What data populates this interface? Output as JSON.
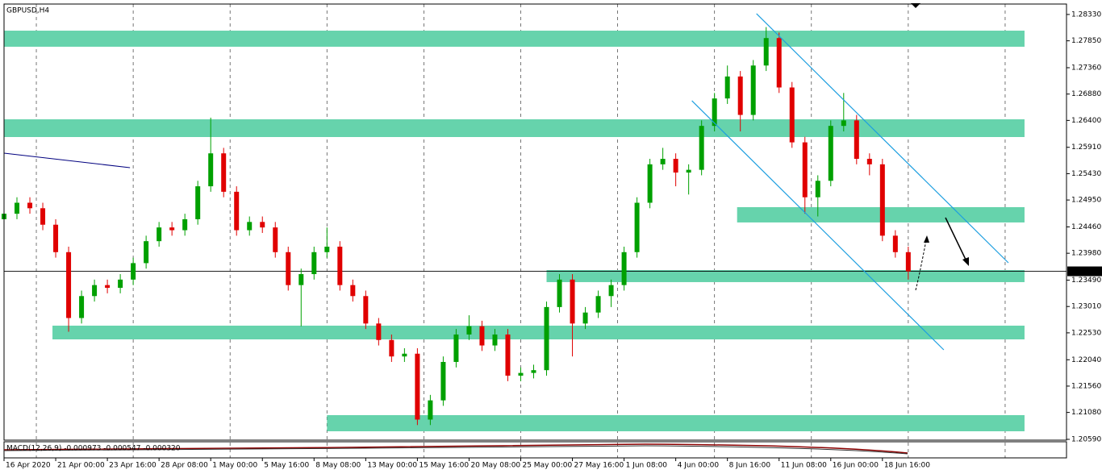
{
  "chart_data": {
    "type": "candlestick",
    "title": "GBPUSD,H4",
    "indicator_label": "MACD(12,26,9) -0.000973 -0.000547 -0.000320",
    "up_color": "#00a000",
    "down_color": "#e00000",
    "zone_color": "#66d3ac",
    "channel_color": "#1e9fe0",
    "trend_color": "#00007f",
    "xlim": [
      0,
      329
    ],
    "ylim": [
      1.2059,
      1.2852
    ],
    "xticks": [
      {
        "value": 0,
        "label": "16 Apr 2020"
      },
      {
        "value": 16,
        "label": "21 Apr 00:00"
      },
      {
        "value": 32,
        "label": "23 Apr 16:00"
      },
      {
        "value": 48,
        "label": "28 Apr 08:00"
      },
      {
        "value": 64,
        "label": "1 May 00:00"
      },
      {
        "value": 80,
        "label": "5 May 16:00"
      },
      {
        "value": 96,
        "label": "8 May 08:00"
      },
      {
        "value": 112,
        "label": "13 May 00:00"
      },
      {
        "value": 128,
        "label": "15 May 16:00"
      },
      {
        "value": 144,
        "label": "20 May 08:00"
      },
      {
        "value": 160,
        "label": "25 May 00:00"
      },
      {
        "value": 176,
        "label": "27 May 16:00"
      },
      {
        "value": 192,
        "label": "1 Jun 08:00"
      },
      {
        "value": 208,
        "label": "4 Jun 00:00"
      },
      {
        "value": 224,
        "label": "8 Jun 16:00"
      },
      {
        "value": 240,
        "label": "11 Jun 08:00"
      },
      {
        "value": 256,
        "label": "16 Jun 00:00"
      },
      {
        "value": 272,
        "label": "18 Jun 16:00"
      }
    ],
    "xgrid": [
      10,
      40,
      70,
      100,
      130,
      160,
      190,
      220,
      250,
      280,
      310
    ],
    "yticks": [
      {
        "value": 1.2833,
        "label": "1.28330"
      },
      {
        "value": 1.2785,
        "label": "1.27850"
      },
      {
        "value": 1.2736,
        "label": "1.27360"
      },
      {
        "value": 1.2688,
        "label": "1.26880"
      },
      {
        "value": 1.264,
        "label": "1.26400"
      },
      {
        "value": 1.2591,
        "label": "1.25910"
      },
      {
        "value": 1.2543,
        "label": "1.25430"
      },
      {
        "value": 1.2495,
        "label": "1.24950"
      },
      {
        "value": 1.2446,
        "label": "1.24460"
      },
      {
        "value": 1.2398,
        "label": "1.23980"
      },
      {
        "value": 1.2349,
        "label": "1.23490"
      },
      {
        "value": 1.2301,
        "label": "1.23010"
      },
      {
        "value": 1.2253,
        "label": "1.22530"
      },
      {
        "value": 1.2204,
        "label": "1.22040"
      },
      {
        "value": 1.2156,
        "label": "1.21560"
      },
      {
        "value": 1.2108,
        "label": "1.21080"
      },
      {
        "value": 1.2059,
        "label": "1.20590"
      }
    ],
    "last_price": {
      "value": 1.23651,
      "label": "1.23651"
    },
    "x": [
      0,
      4,
      8,
      12,
      16,
      20,
      24,
      28,
      32,
      36,
      40,
      44,
      48,
      52,
      56,
      60,
      64,
      68,
      72,
      76,
      80,
      84,
      88,
      92,
      96,
      100,
      104,
      108,
      112,
      116,
      120,
      124,
      128,
      132,
      136,
      140,
      144,
      148,
      152,
      156,
      160,
      164,
      168,
      172,
      176,
      180,
      184,
      188,
      192,
      196,
      200,
      204,
      208,
      212,
      216,
      220,
      224,
      228,
      232,
      236,
      240,
      244,
      248,
      252,
      256,
      260,
      264,
      268,
      272,
      276,
      280
    ],
    "open": [
      1.246,
      1.247,
      1.249,
      1.248,
      1.245,
      1.24,
      1.228,
      1.232,
      1.234,
      1.2335,
      1.235,
      1.238,
      1.242,
      1.2445,
      1.244,
      1.246,
      1.252,
      1.258,
      1.251,
      1.244,
      1.2455,
      1.2445,
      1.24,
      1.234,
      1.236,
      1.24,
      1.241,
      1.234,
      1.232,
      1.227,
      1.224,
      1.221,
      1.2215,
      1.2095,
      1.213,
      1.22,
      1.225,
      1.2265,
      1.223,
      1.225,
      1.2175,
      1.218,
      1.2185,
      1.23,
      1.235,
      1.227,
      1.229,
      1.232,
      1.234,
      1.24,
      1.249,
      1.256,
      1.257,
      1.2545,
      1.255,
      1.263,
      1.268,
      1.272,
      1.265,
      1.274,
      1.279,
      1.27,
      1.26,
      1.25,
      1.253,
      1.263,
      1.264,
      1.257,
      1.256,
      1.243,
      1.24
    ],
    "high": [
      1.248,
      1.25,
      1.25,
      1.249,
      1.246,
      1.241,
      1.233,
      1.235,
      1.235,
      1.236,
      1.239,
      1.243,
      1.2455,
      1.2455,
      1.247,
      1.253,
      1.2645,
      1.259,
      1.252,
      1.2465,
      1.2465,
      1.2455,
      1.241,
      1.237,
      1.241,
      1.2445,
      1.242,
      1.235,
      1.233,
      1.228,
      1.225,
      1.2225,
      1.2225,
      1.214,
      1.221,
      1.226,
      1.2285,
      1.2275,
      1.226,
      1.226,
      1.219,
      1.2195,
      1.231,
      1.236,
      1.236,
      1.23,
      1.233,
      1.235,
      1.241,
      1.25,
      1.257,
      1.259,
      1.258,
      1.256,
      1.264,
      1.269,
      1.274,
      1.273,
      1.275,
      1.281,
      1.28,
      1.271,
      1.261,
      1.254,
      1.264,
      1.269,
      1.265,
      1.258,
      1.257,
      1.244,
      1.241
    ],
    "low": [
      1.245,
      1.246,
      1.247,
      1.244,
      1.239,
      1.2255,
      1.227,
      1.231,
      1.2325,
      1.2325,
      1.234,
      1.237,
      1.241,
      1.243,
      1.243,
      1.245,
      1.251,
      1.25,
      1.243,
      1.243,
      1.2435,
      1.239,
      1.233,
      1.2265,
      1.235,
      1.239,
      1.233,
      1.231,
      1.226,
      1.223,
      1.22,
      1.22,
      1.2085,
      1.2085,
      1.212,
      1.219,
      1.224,
      1.222,
      1.222,
      1.2165,
      1.2165,
      1.217,
      1.2175,
      1.229,
      1.221,
      1.226,
      1.228,
      1.23,
      1.233,
      1.239,
      1.248,
      1.255,
      1.252,
      1.2505,
      1.254,
      1.262,
      1.267,
      1.262,
      1.264,
      1.273,
      1.269,
      1.259,
      1.247,
      1.2465,
      1.252,
      1.262,
      1.256,
      1.254,
      1.242,
      1.239,
      1.235
    ],
    "close": [
      1.247,
      1.249,
      1.248,
      1.245,
      1.24,
      1.228,
      1.232,
      1.234,
      1.2335,
      1.235,
      1.238,
      1.242,
      1.2445,
      1.244,
      1.246,
      1.252,
      1.258,
      1.251,
      1.244,
      1.2455,
      1.2445,
      1.24,
      1.234,
      1.236,
      1.24,
      1.241,
      1.234,
      1.232,
      1.227,
      1.224,
      1.221,
      1.2215,
      1.2095,
      1.213,
      1.22,
      1.225,
      1.2265,
      1.223,
      1.225,
      1.2175,
      1.218,
      1.2185,
      1.23,
      1.235,
      1.227,
      1.229,
      1.232,
      1.234,
      1.24,
      1.249,
      1.256,
      1.257,
      1.2545,
      1.255,
      1.263,
      1.268,
      1.272,
      1.265,
      1.274,
      1.279,
      1.27,
      1.26,
      1.25,
      1.253,
      1.263,
      1.264,
      1.257,
      1.256,
      1.243,
      1.24,
      1.2365
    ],
    "zones": [
      {
        "x": [
          0,
          316
        ],
        "y": [
          1.27742,
          1.28035
        ]
      },
      {
        "x": [
          0,
          316
        ],
        "y": [
          1.26097,
          1.2642
        ]
      },
      {
        "x": [
          227,
          316
        ],
        "y": [
          1.24541,
          1.2482
        ]
      },
      {
        "x": [
          168,
          316
        ],
        "y": [
          1.23454,
          1.23674
        ]
      },
      {
        "x": [
          15,
          316
        ],
        "y": [
          1.22411,
          1.22661
        ]
      },
      {
        "x": [
          100,
          316
        ],
        "y": [
          1.20737,
          1.21031
        ]
      }
    ],
    "channel": [
      {
        "x": [
          233,
          311
        ],
        "y": [
          1.28344,
          1.23806
        ]
      },
      {
        "x": [
          213,
          291
        ],
        "y": [
          1.26758,
          1.2222
        ]
      }
    ],
    "trendline": {
      "x": [
        0,
        39
      ],
      "y": [
        1.25803,
        1.25539
      ]
    }
  }
}
